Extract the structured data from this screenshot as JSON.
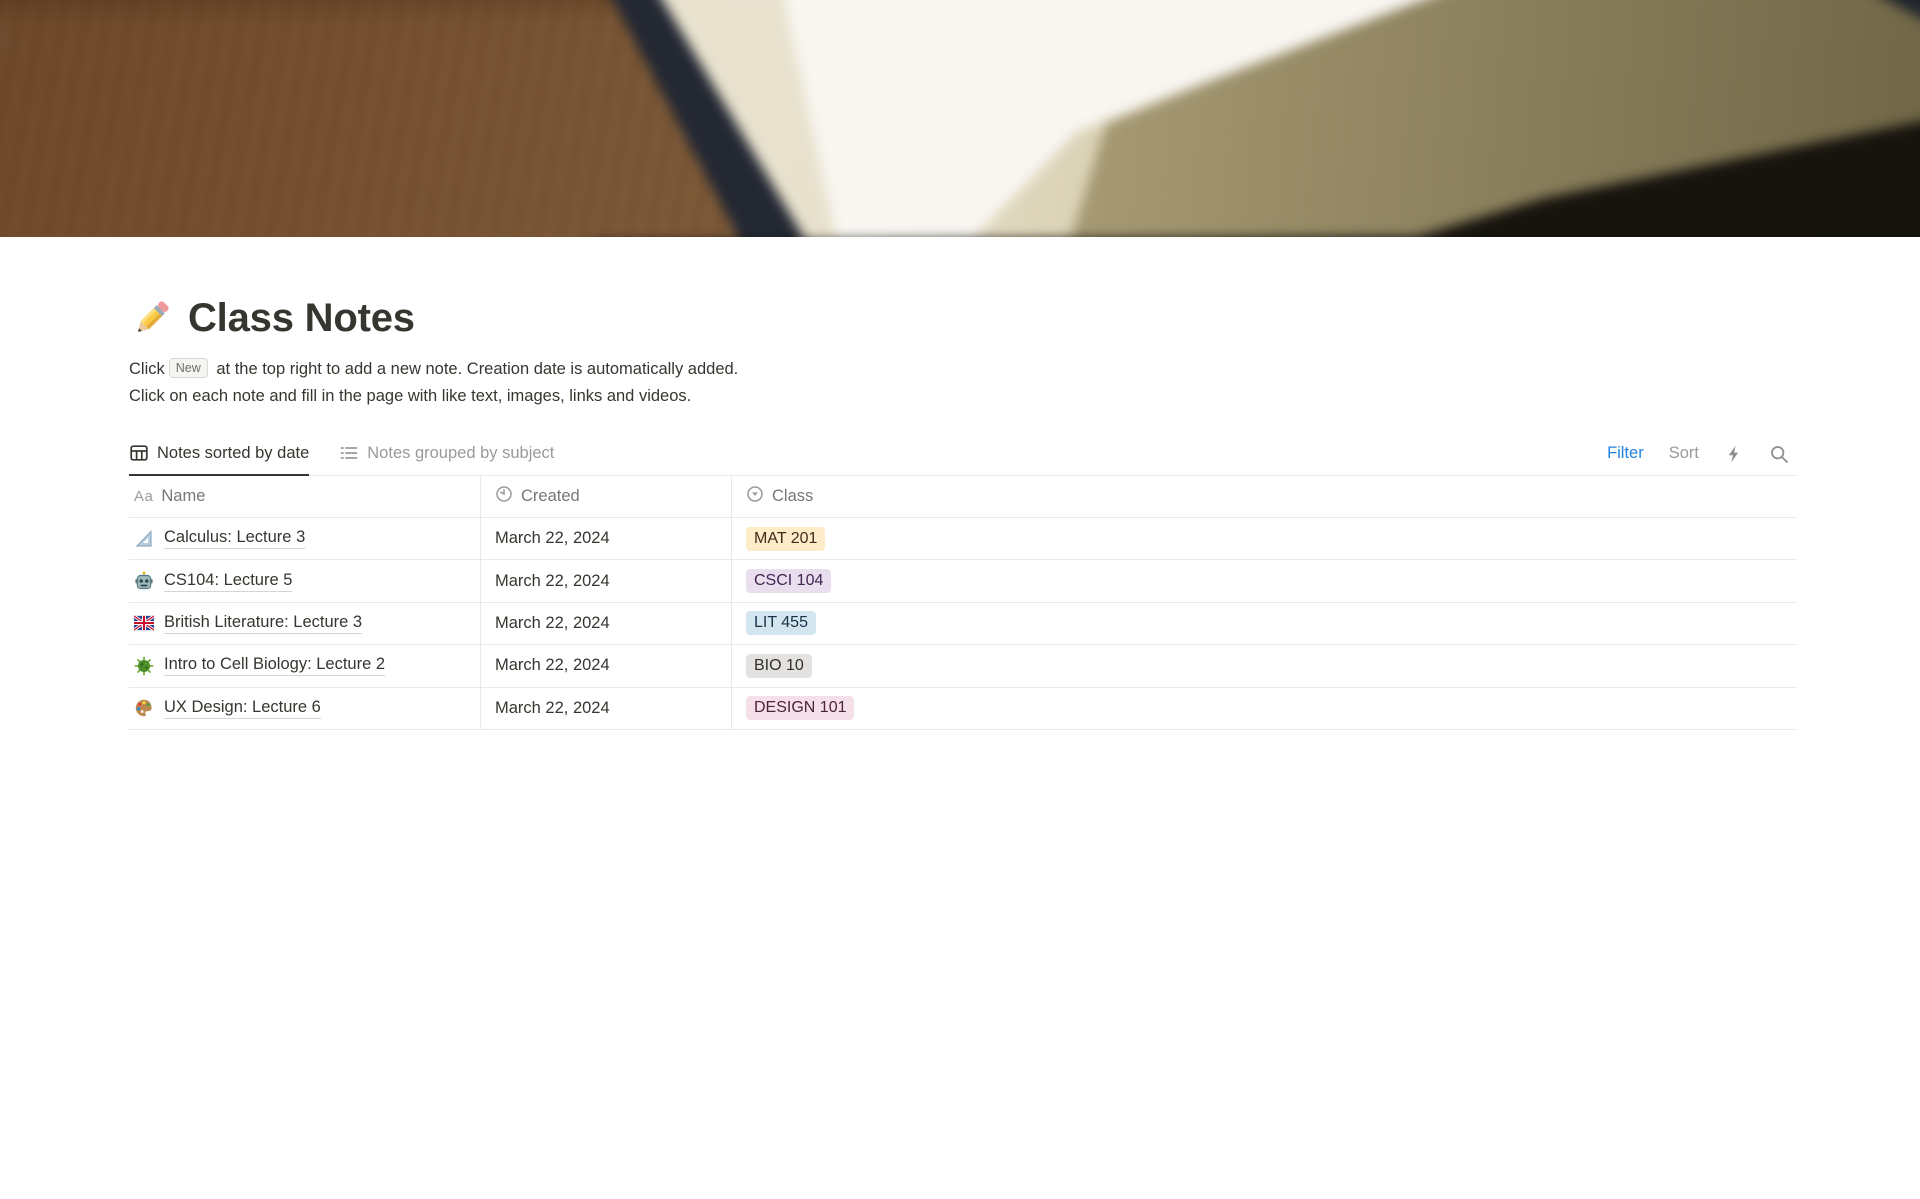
{
  "page": {
    "title": "Class Notes",
    "title_icon": "pencil-icon"
  },
  "description": {
    "line1_before": "Click",
    "new_chip_label": "New",
    "line1_after": " at the top right to add a new note. Creation date is automatically added.",
    "line2": "Click on each note and fill in the page with like text, images, links and videos."
  },
  "toolbar": {
    "tabs": [
      {
        "label": "Notes sorted by date",
        "icon": "table-view-icon",
        "active": true
      },
      {
        "label": "Notes grouped by subject",
        "icon": "list-view-icon",
        "active": false
      }
    ],
    "filter_label": "Filter",
    "sort_label": "Sort",
    "filter_color": "#2383E2",
    "extra_icons": [
      "lightning-icon",
      "search-icon"
    ]
  },
  "table": {
    "columns": [
      {
        "label": "Name",
        "icon": "text-property-icon"
      },
      {
        "label": "Created",
        "icon": "clock-icon"
      },
      {
        "label": "Class",
        "icon": "select-property-icon"
      }
    ],
    "rows": [
      {
        "icon": "triangle-ruler-icon",
        "name": "Calculus: Lecture 3",
        "created": "March 22, 2024",
        "class": {
          "label": "MAT 201",
          "bg": "#FDECC8",
          "text": "#402C1B"
        }
      },
      {
        "icon": "robot-icon",
        "name": "CS104: Lecture 5",
        "created": "March 22, 2024",
        "class": {
          "label": "CSCI 104",
          "bg": "#E8DEEE",
          "text": "#412454"
        }
      },
      {
        "icon": "uk-flag-icon",
        "name": "British Literature: Lecture 3",
        "created": "March 22, 2024",
        "class": {
          "label": "LIT 455",
          "bg": "#D3E5EF",
          "text": "#183347"
        }
      },
      {
        "icon": "microbe-icon",
        "name": "Intro to Cell Biology: Lecture 2",
        "created": "March 22, 2024",
        "class": {
          "label": "BIO 10",
          "bg": "#E3E2E0",
          "text": "#32302C"
        }
      },
      {
        "icon": "palette-icon",
        "name": "UX Design: Lecture 6",
        "created": "March 22, 2024",
        "class": {
          "label": "DESIGN 101",
          "bg": "#F5E0E9",
          "text": "#4C2337"
        }
      }
    ]
  }
}
